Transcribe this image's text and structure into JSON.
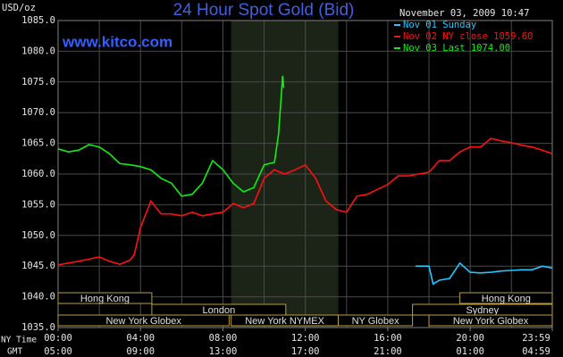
{
  "chart_data": {
    "type": "line",
    "title": "24 Hour Spot Gold (Bid)",
    "site": "www.kitco.com",
    "y_unit": "USD/oz",
    "timestamp": "November 03, 2009 10:47",
    "x_axis_labels": [
      "NY Time",
      "GMT"
    ],
    "xlim": [
      0,
      23.9833
    ],
    "ylim": [
      1035,
      1085
    ],
    "yticks": [
      {
        "value": 1035,
        "label": "1035.0"
      },
      {
        "value": 1040,
        "label": "1040.0"
      },
      {
        "value": 1045,
        "label": "1045.0"
      },
      {
        "value": 1050,
        "label": "1050.0"
      },
      {
        "value": 1055,
        "label": "1055.0"
      },
      {
        "value": 1060,
        "label": "1060.0"
      },
      {
        "value": 1065,
        "label": "1065.0"
      },
      {
        "value": 1070,
        "label": "1070.0"
      },
      {
        "value": 1075,
        "label": "1075.0"
      },
      {
        "value": 1080,
        "label": "1080.0"
      },
      {
        "value": 1085,
        "label": "1085.0"
      }
    ],
    "xticks": [
      {
        "value": 0,
        "label": "00:00"
      },
      {
        "value": 4,
        "label": "04:00"
      },
      {
        "value": 8,
        "label": "08:00"
      },
      {
        "value": 12,
        "label": "12:00"
      },
      {
        "value": 16,
        "label": "16:00"
      },
      {
        "value": 20,
        "label": "20:00"
      },
      {
        "value": 23.9833,
        "label": "23:59"
      }
    ],
    "xticks_gmt": [
      {
        "value": 0,
        "label": "05:00"
      },
      {
        "value": 4,
        "label": "09:00"
      },
      {
        "value": 8,
        "label": "13:00"
      },
      {
        "value": 12,
        "label": "17:00"
      },
      {
        "value": 16,
        "label": "21:00"
      },
      {
        "value": 20,
        "label": "01:00"
      },
      {
        "value": 23.9833,
        "label": "04:59"
      }
    ],
    "xgrid": [
      0,
      2,
      4,
      6,
      8,
      10,
      12,
      14,
      16,
      18,
      20,
      22
    ],
    "grid": true,
    "sessions": [
      {
        "label": "Hong Kong",
        "start": 0,
        "end": 4.55
      },
      {
        "label": "Hong Kong",
        "start": 19.5,
        "end": 23.9833
      },
      {
        "label": "London",
        "start": 4.55,
        "end": 11.05
      },
      {
        "label": "Sydney",
        "start": 17.2,
        "end": 23.9833
      },
      {
        "label": "New York Globex",
        "start": 0,
        "end": 8.3
      },
      {
        "label": "New York NYMEX",
        "start": 8.4,
        "end": 13.6
      },
      {
        "label": "NY Globex",
        "start": 13.6,
        "end": 17.2
      },
      {
        "label": "New York Globex",
        "start": 18.0,
        "end": 23.9833
      }
    ],
    "series": [
      {
        "name": "Nov 01 Sunday",
        "color": "#20c8ff",
        "x": [
          17.35,
          18,
          18.2,
          18.5,
          19,
          19.5,
          20,
          20.5,
          21,
          21.5,
          22,
          22.5,
          23,
          23.5,
          23.9833
        ],
        "values": [
          1045.0,
          1045.0,
          1042.1,
          1042.7,
          1043.0,
          1045.5,
          1044.0,
          1043.9,
          1044.0,
          1044.2,
          1044.3,
          1044.4,
          1044.4,
          1045.0,
          1044.7
        ]
      },
      {
        "name": "Nov 02 NY close 1059.60",
        "color": "#ff1010",
        "x": [
          0,
          1,
          2,
          2.5,
          3,
          3.5,
          3.7,
          4,
          4.5,
          5,
          5.5,
          6,
          6.5,
          7,
          7.5,
          8,
          8.5,
          9,
          9.5,
          10,
          10.5,
          11,
          11.5,
          12,
          12.5,
          13,
          13.5,
          14,
          14.5,
          15,
          15.5,
          16,
          16.5,
          17,
          17.5,
          18,
          18.5,
          19,
          19.5,
          20,
          20.5,
          21,
          21.5,
          22,
          22.5,
          23,
          23.5,
          23.9833
        ],
        "values": [
          1045.2,
          1045.8,
          1046.5,
          1045.8,
          1045.3,
          1046.0,
          1046.9,
          1051.3,
          1055.6,
          1053.5,
          1053.5,
          1053.2,
          1053.8,
          1053.2,
          1053.5,
          1053.8,
          1055.2,
          1054.5,
          1055.2,
          1059.3,
          1060.7,
          1060.0,
          1060.7,
          1061.5,
          1059.3,
          1055.6,
          1054.2,
          1053.8,
          1056.4,
          1056.7,
          1057.5,
          1058.3,
          1059.7,
          1059.7,
          1060.0,
          1060.3,
          1062.2,
          1062.2,
          1063.6,
          1064.4,
          1064.4,
          1065.8,
          1065.4,
          1065.1,
          1064.7,
          1064.4,
          1063.9,
          1063.3
        ]
      },
      {
        "name": "Nov 03 Last 1074.00",
        "color": "#10ee10",
        "x": [
          0,
          0.5,
          1,
          1.5,
          2,
          2.5,
          3,
          3.5,
          4,
          4.5,
          5,
          5.5,
          6,
          6.5,
          7,
          7.5,
          8,
          8.5,
          9,
          9.5,
          10,
          10.5,
          10.7,
          10.9,
          10.95
        ],
        "values": [
          1064.1,
          1063.6,
          1063.9,
          1064.8,
          1064.4,
          1063.3,
          1061.7,
          1061.5,
          1061.2,
          1060.7,
          1059.3,
          1058.5,
          1056.4,
          1056.7,
          1058.5,
          1062.2,
          1060.7,
          1058.5,
          1057.1,
          1057.8,
          1061.5,
          1061.9,
          1066.5,
          1076.0,
          1074.0
        ]
      }
    ]
  }
}
